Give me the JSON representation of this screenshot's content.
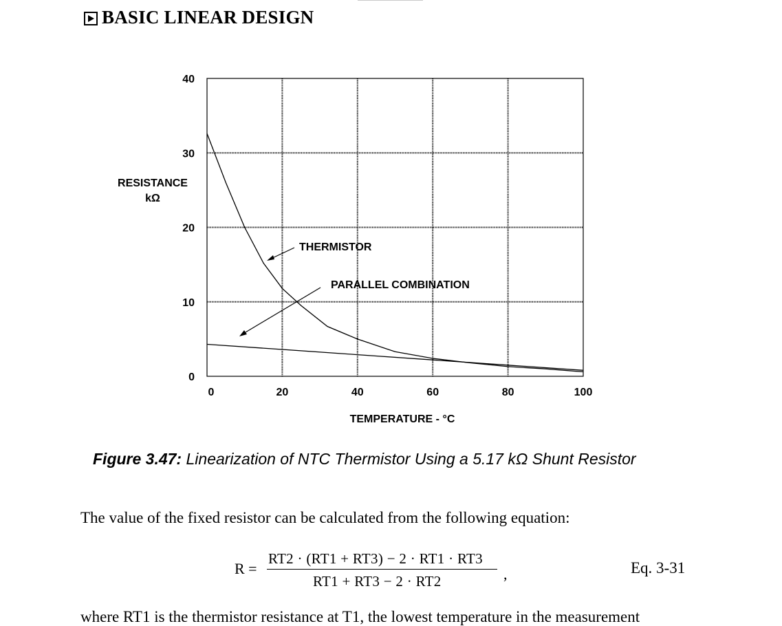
{
  "header": {
    "title": "BASIC LINEAR DESIGN"
  },
  "chart_data": {
    "type": "line",
    "title": "",
    "xlabel": "TEMPERATURE - °C",
    "ylabel_line1": "RESISTANCE",
    "ylabel_line2": "kΩ",
    "xlim": [
      0,
      100
    ],
    "ylim": [
      0,
      40
    ],
    "x_ticks": [
      "0",
      "20",
      "40",
      "60",
      "80",
      "100"
    ],
    "y_ticks": [
      "0",
      "10",
      "20",
      "30",
      "40"
    ],
    "grid": true,
    "series": [
      {
        "name": "THERMISTOR",
        "x": [
          0,
          5,
          10,
          15,
          20,
          25,
          32,
          40,
          50,
          60,
          70,
          80,
          90,
          100
        ],
        "y": [
          32.6,
          26.0,
          20.0,
          15.2,
          11.8,
          9.5,
          6.7,
          5.0,
          3.3,
          2.4,
          1.8,
          1.3,
          1.0,
          0.6
        ]
      },
      {
        "name": "PARALLEL COMBINATION",
        "x": [
          0,
          20,
          40,
          60,
          80,
          100
        ],
        "y": [
          4.3,
          3.6,
          2.9,
          2.2,
          1.5,
          0.8
        ]
      }
    ],
    "annotations": [
      {
        "text": "THERMISTOR"
      },
      {
        "text": "PARALLEL COMBINATION"
      }
    ]
  },
  "caption": {
    "label": "Figure 3.47:",
    "text": " Linearization of NTC Thermistor Using a 5.17 kΩ Shunt Resistor"
  },
  "body_text": "The value of the fixed resistor can be calculated from the following equation:",
  "equation": {
    "lhs": "R =",
    "numerator": "RT2 · (RT1 + RT3) − 2 · RT1 · RT3",
    "denominator": "RT1 + RT3 − 2 · RT2",
    "trailing": ",",
    "label": "Eq. 3-31"
  },
  "cutoff_text": "where RT1 is the thermistor resistance at T1, the lowest temperature in the measurement"
}
